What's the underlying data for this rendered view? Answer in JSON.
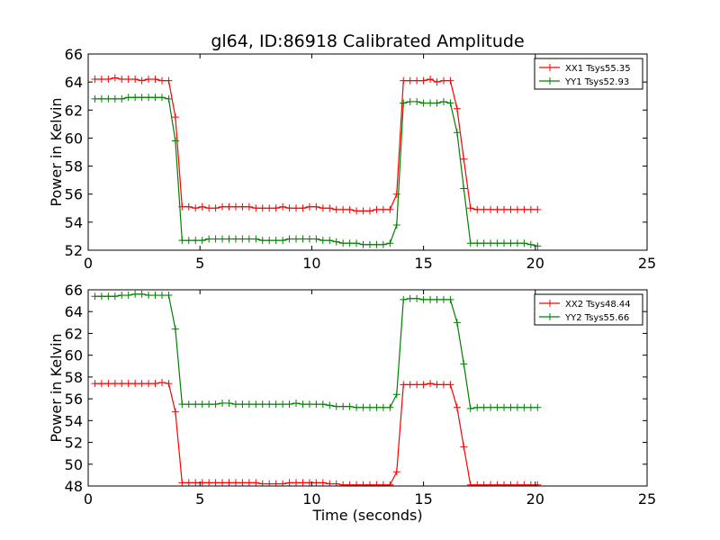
{
  "chart_data": [
    {
      "type": "line",
      "title": "gl64, ID:86918 Calibrated Amplitude",
      "xlabel": "",
      "ylabel": "Power in Kelvin",
      "xlim": [
        0,
        25
      ],
      "ylim": [
        52,
        66
      ],
      "xticks": [
        0,
        5,
        10,
        15,
        20,
        25
      ],
      "yticks": [
        52,
        54,
        56,
        58,
        60,
        62,
        64,
        66
      ],
      "legend_position": "top-right",
      "series": [
        {
          "name": "XX1 Tsys55.35",
          "color": "#ff0000",
          "x": [
            0.3,
            0.6,
            0.9,
            1.2,
            1.5,
            1.8,
            2.1,
            2.4,
            2.7,
            3.0,
            3.3,
            3.6,
            3.9,
            4.2,
            4.5,
            4.8,
            5.1,
            5.4,
            5.7,
            6.0,
            6.3,
            6.6,
            6.9,
            7.2,
            7.5,
            7.8,
            8.1,
            8.4,
            8.7,
            9.0,
            9.3,
            9.6,
            9.9,
            10.2,
            10.5,
            10.8,
            11.1,
            11.4,
            11.7,
            12.0,
            12.3,
            12.6,
            12.9,
            13.2,
            13.5,
            13.8,
            14.1,
            14.4,
            14.7,
            15.0,
            15.3,
            15.6,
            15.9,
            16.2,
            16.5,
            16.8,
            17.1,
            17.4,
            17.7,
            18.0,
            18.3,
            18.6,
            18.9,
            19.2,
            19.5,
            19.8,
            20.1
          ],
          "y": [
            64.2,
            64.2,
            64.2,
            64.3,
            64.2,
            64.2,
            64.2,
            64.1,
            64.2,
            64.2,
            64.1,
            64.1,
            61.5,
            55.1,
            55.1,
            55.0,
            55.1,
            55.0,
            55.0,
            55.1,
            55.1,
            55.1,
            55.1,
            55.1,
            55.0,
            55.0,
            55.0,
            55.0,
            55.1,
            55.0,
            55.0,
            55.0,
            55.1,
            55.1,
            55.0,
            55.0,
            54.9,
            54.9,
            54.9,
            54.8,
            54.8,
            54.8,
            54.9,
            54.9,
            54.9,
            56.0,
            64.1,
            64.1,
            64.1,
            64.1,
            64.2,
            64.0,
            64.1,
            64.1,
            62.1,
            58.5,
            55.0,
            54.9,
            54.9,
            54.9,
            54.9,
            54.9,
            54.9,
            54.9,
            54.9,
            54.9,
            54.9
          ]
        },
        {
          "name": "YY1 Tsys52.93",
          "color": "#008000",
          "x": [
            0.3,
            0.6,
            0.9,
            1.2,
            1.5,
            1.8,
            2.1,
            2.4,
            2.7,
            3.0,
            3.3,
            3.6,
            3.9,
            4.2,
            4.5,
            4.8,
            5.1,
            5.4,
            5.7,
            6.0,
            6.3,
            6.6,
            6.9,
            7.2,
            7.5,
            7.8,
            8.1,
            8.4,
            8.7,
            9.0,
            9.3,
            9.6,
            9.9,
            10.2,
            10.5,
            10.8,
            11.1,
            11.4,
            11.7,
            12.0,
            12.3,
            12.6,
            12.9,
            13.2,
            13.5,
            13.8,
            14.1,
            14.4,
            14.7,
            15.0,
            15.3,
            15.6,
            15.9,
            16.2,
            16.5,
            16.8,
            17.1,
            17.4,
            17.7,
            18.0,
            18.3,
            18.6,
            18.9,
            19.2,
            19.5,
            19.8,
            20.1
          ],
          "y": [
            62.8,
            62.8,
            62.8,
            62.8,
            62.8,
            62.9,
            62.9,
            62.9,
            62.9,
            62.9,
            62.9,
            62.8,
            59.8,
            52.7,
            52.7,
            52.7,
            52.7,
            52.8,
            52.8,
            52.8,
            52.8,
            52.8,
            52.8,
            52.8,
            52.8,
            52.7,
            52.7,
            52.7,
            52.7,
            52.8,
            52.8,
            52.8,
            52.8,
            52.8,
            52.7,
            52.7,
            52.6,
            52.5,
            52.5,
            52.5,
            52.4,
            52.4,
            52.4,
            52.4,
            52.5,
            53.8,
            62.5,
            62.6,
            62.6,
            62.5,
            62.5,
            62.5,
            62.6,
            62.5,
            60.4,
            56.4,
            52.5,
            52.5,
            52.5,
            52.5,
            52.5,
            52.5,
            52.5,
            52.5,
            52.5,
            52.4,
            52.3
          ]
        }
      ]
    },
    {
      "type": "line",
      "title": "",
      "xlabel": "Time (seconds)",
      "ylabel": "Power in Kelvin",
      "xlim": [
        0,
        25
      ],
      "ylim": [
        48,
        66
      ],
      "xticks": [
        0,
        5,
        10,
        15,
        20,
        25
      ],
      "yticks": [
        48,
        50,
        52,
        54,
        56,
        58,
        60,
        62,
        64,
        66
      ],
      "legend_position": "top-right",
      "series": [
        {
          "name": "XX2 Tsys48.44",
          "color": "#ff0000",
          "x": [
            0.3,
            0.6,
            0.9,
            1.2,
            1.5,
            1.8,
            2.1,
            2.4,
            2.7,
            3.0,
            3.3,
            3.6,
            3.9,
            4.2,
            4.5,
            4.8,
            5.1,
            5.4,
            5.7,
            6.0,
            6.3,
            6.6,
            6.9,
            7.2,
            7.5,
            7.8,
            8.1,
            8.4,
            8.7,
            9.0,
            9.3,
            9.6,
            9.9,
            10.2,
            10.5,
            10.8,
            11.1,
            11.4,
            11.7,
            12.0,
            12.3,
            12.6,
            12.9,
            13.2,
            13.5,
            13.8,
            14.1,
            14.4,
            14.7,
            15.0,
            15.3,
            15.6,
            15.9,
            16.2,
            16.5,
            16.8,
            17.1,
            17.4,
            17.7,
            18.0,
            18.3,
            18.6,
            18.9,
            19.2,
            19.5,
            19.8,
            20.1
          ],
          "y": [
            57.4,
            57.4,
            57.4,
            57.4,
            57.4,
            57.4,
            57.4,
            57.4,
            57.4,
            57.4,
            57.5,
            57.4,
            54.8,
            48.3,
            48.3,
            48.3,
            48.3,
            48.3,
            48.3,
            48.3,
            48.3,
            48.3,
            48.3,
            48.3,
            48.3,
            48.2,
            48.2,
            48.2,
            48.2,
            48.3,
            48.3,
            48.3,
            48.3,
            48.3,
            48.3,
            48.2,
            48.2,
            48.1,
            48.1,
            48.1,
            48.1,
            48.1,
            48.1,
            48.1,
            48.1,
            49.3,
            57.3,
            57.3,
            57.3,
            57.3,
            57.4,
            57.3,
            57.3,
            57.3,
            55.2,
            51.6,
            48.1,
            48.1,
            48.1,
            48.1,
            48.1,
            48.1,
            48.1,
            48.1,
            48.1,
            48.1,
            48.1
          ]
        },
        {
          "name": "YY2 Tsys55.66",
          "color": "#008000",
          "x": [
            0.3,
            0.6,
            0.9,
            1.2,
            1.5,
            1.8,
            2.1,
            2.4,
            2.7,
            3.0,
            3.3,
            3.6,
            3.9,
            4.2,
            4.5,
            4.8,
            5.1,
            5.4,
            5.7,
            6.0,
            6.3,
            6.6,
            6.9,
            7.2,
            7.5,
            7.8,
            8.1,
            8.4,
            8.7,
            9.0,
            9.3,
            9.6,
            9.9,
            10.2,
            10.5,
            10.8,
            11.1,
            11.4,
            11.7,
            12.0,
            12.3,
            12.6,
            12.9,
            13.2,
            13.5,
            13.8,
            14.1,
            14.4,
            14.7,
            15.0,
            15.3,
            15.6,
            15.9,
            16.2,
            16.5,
            16.8,
            17.1,
            17.4,
            17.7,
            18.0,
            18.3,
            18.6,
            18.9,
            19.2,
            19.5,
            19.8,
            20.1
          ],
          "y": [
            65.4,
            65.4,
            65.4,
            65.4,
            65.5,
            65.5,
            65.6,
            65.6,
            65.5,
            65.5,
            65.5,
            65.5,
            62.4,
            55.5,
            55.5,
            55.5,
            55.5,
            55.5,
            55.5,
            55.6,
            55.6,
            55.5,
            55.5,
            55.5,
            55.5,
            55.5,
            55.5,
            55.5,
            55.5,
            55.5,
            55.6,
            55.5,
            55.5,
            55.5,
            55.5,
            55.4,
            55.3,
            55.3,
            55.3,
            55.2,
            55.2,
            55.2,
            55.2,
            55.2,
            55.2,
            56.4,
            65.1,
            65.2,
            65.2,
            65.1,
            65.1,
            65.1,
            65.1,
            65.1,
            63.0,
            59.2,
            55.1,
            55.2,
            55.2,
            55.2,
            55.2,
            55.2,
            55.2,
            55.2,
            55.2,
            55.2,
            55.2
          ]
        }
      ]
    }
  ]
}
